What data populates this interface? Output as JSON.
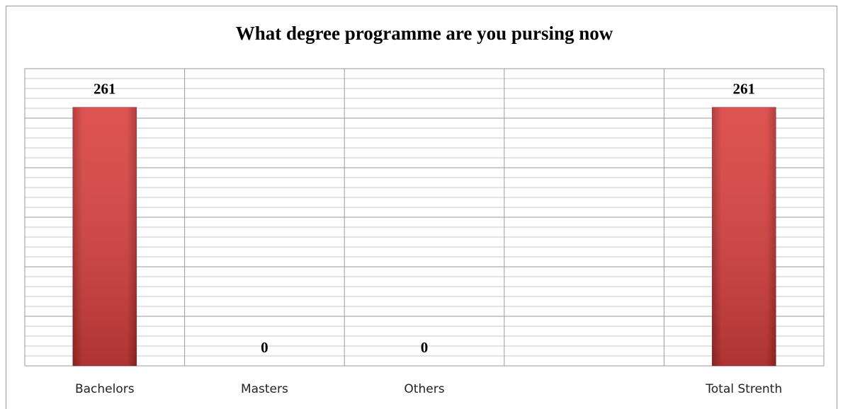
{
  "chart_data": {
    "type": "bar",
    "title": "What degree programme are you pursing now",
    "categories": [
      "Bachelors",
      "Masters",
      "Others",
      null,
      "Total Strenth"
    ],
    "values": [
      261,
      0,
      0,
      null,
      261
    ],
    "color": "#d9403e",
    "ylim": [
      0,
      300
    ],
    "yticks": [
      0,
      50,
      100,
      150,
      200,
      250,
      300
    ],
    "minor_yticks": [
      10,
      20,
      30,
      40,
      60,
      70,
      80,
      90,
      110,
      120,
      130,
      140,
      160,
      170,
      180,
      190,
      210,
      220,
      230,
      240,
      260,
      270,
      280,
      290
    ],
    "grid": true
  }
}
